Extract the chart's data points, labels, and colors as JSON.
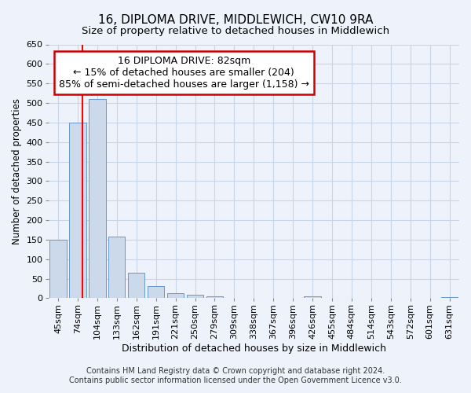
{
  "title": "16, DIPLOMA DRIVE, MIDDLEWICH, CW10 9RA",
  "subtitle": "Size of property relative to detached houses in Middlewich",
  "xlabel": "Distribution of detached houses by size in Middlewich",
  "ylabel": "Number of detached properties",
  "categories": [
    "45sqm",
    "74sqm",
    "104sqm",
    "133sqm",
    "162sqm",
    "191sqm",
    "221sqm",
    "250sqm",
    "279sqm",
    "309sqm",
    "338sqm",
    "367sqm",
    "396sqm",
    "426sqm",
    "455sqm",
    "484sqm",
    "514sqm",
    "543sqm",
    "572sqm",
    "601sqm",
    "631sqm"
  ],
  "values": [
    150,
    450,
    510,
    158,
    65,
    30,
    13,
    8,
    5,
    0,
    0,
    0,
    0,
    5,
    0,
    0,
    0,
    0,
    0,
    0,
    3
  ],
  "bar_color": "#ccd9ea",
  "bar_edge_color": "#6699cc",
  "ylim": [
    0,
    650
  ],
  "yticks": [
    0,
    50,
    100,
    150,
    200,
    250,
    300,
    350,
    400,
    450,
    500,
    550,
    600,
    650
  ],
  "red_line_x": 1.25,
  "annotation_line1": "16 DIPLOMA DRIVE: 82sqm",
  "annotation_line2": "← 15% of detached houses are smaller (204)",
  "annotation_line3": "85% of semi-detached houses are larger (1,158) →",
  "annotation_box_color": "#ffffff",
  "annotation_border_color": "#cc0000",
  "footer_line1": "Contains HM Land Registry data © Crown copyright and database right 2024.",
  "footer_line2": "Contains public sector information licensed under the Open Government Licence v3.0.",
  "background_color": "#eef2fa",
  "grid_color": "#c8d4e8",
  "title_fontsize": 11,
  "subtitle_fontsize": 9.5,
  "tick_fontsize": 8,
  "ylabel_fontsize": 8.5,
  "xlabel_fontsize": 9,
  "footer_fontsize": 7,
  "annotation_fontsize": 9
}
